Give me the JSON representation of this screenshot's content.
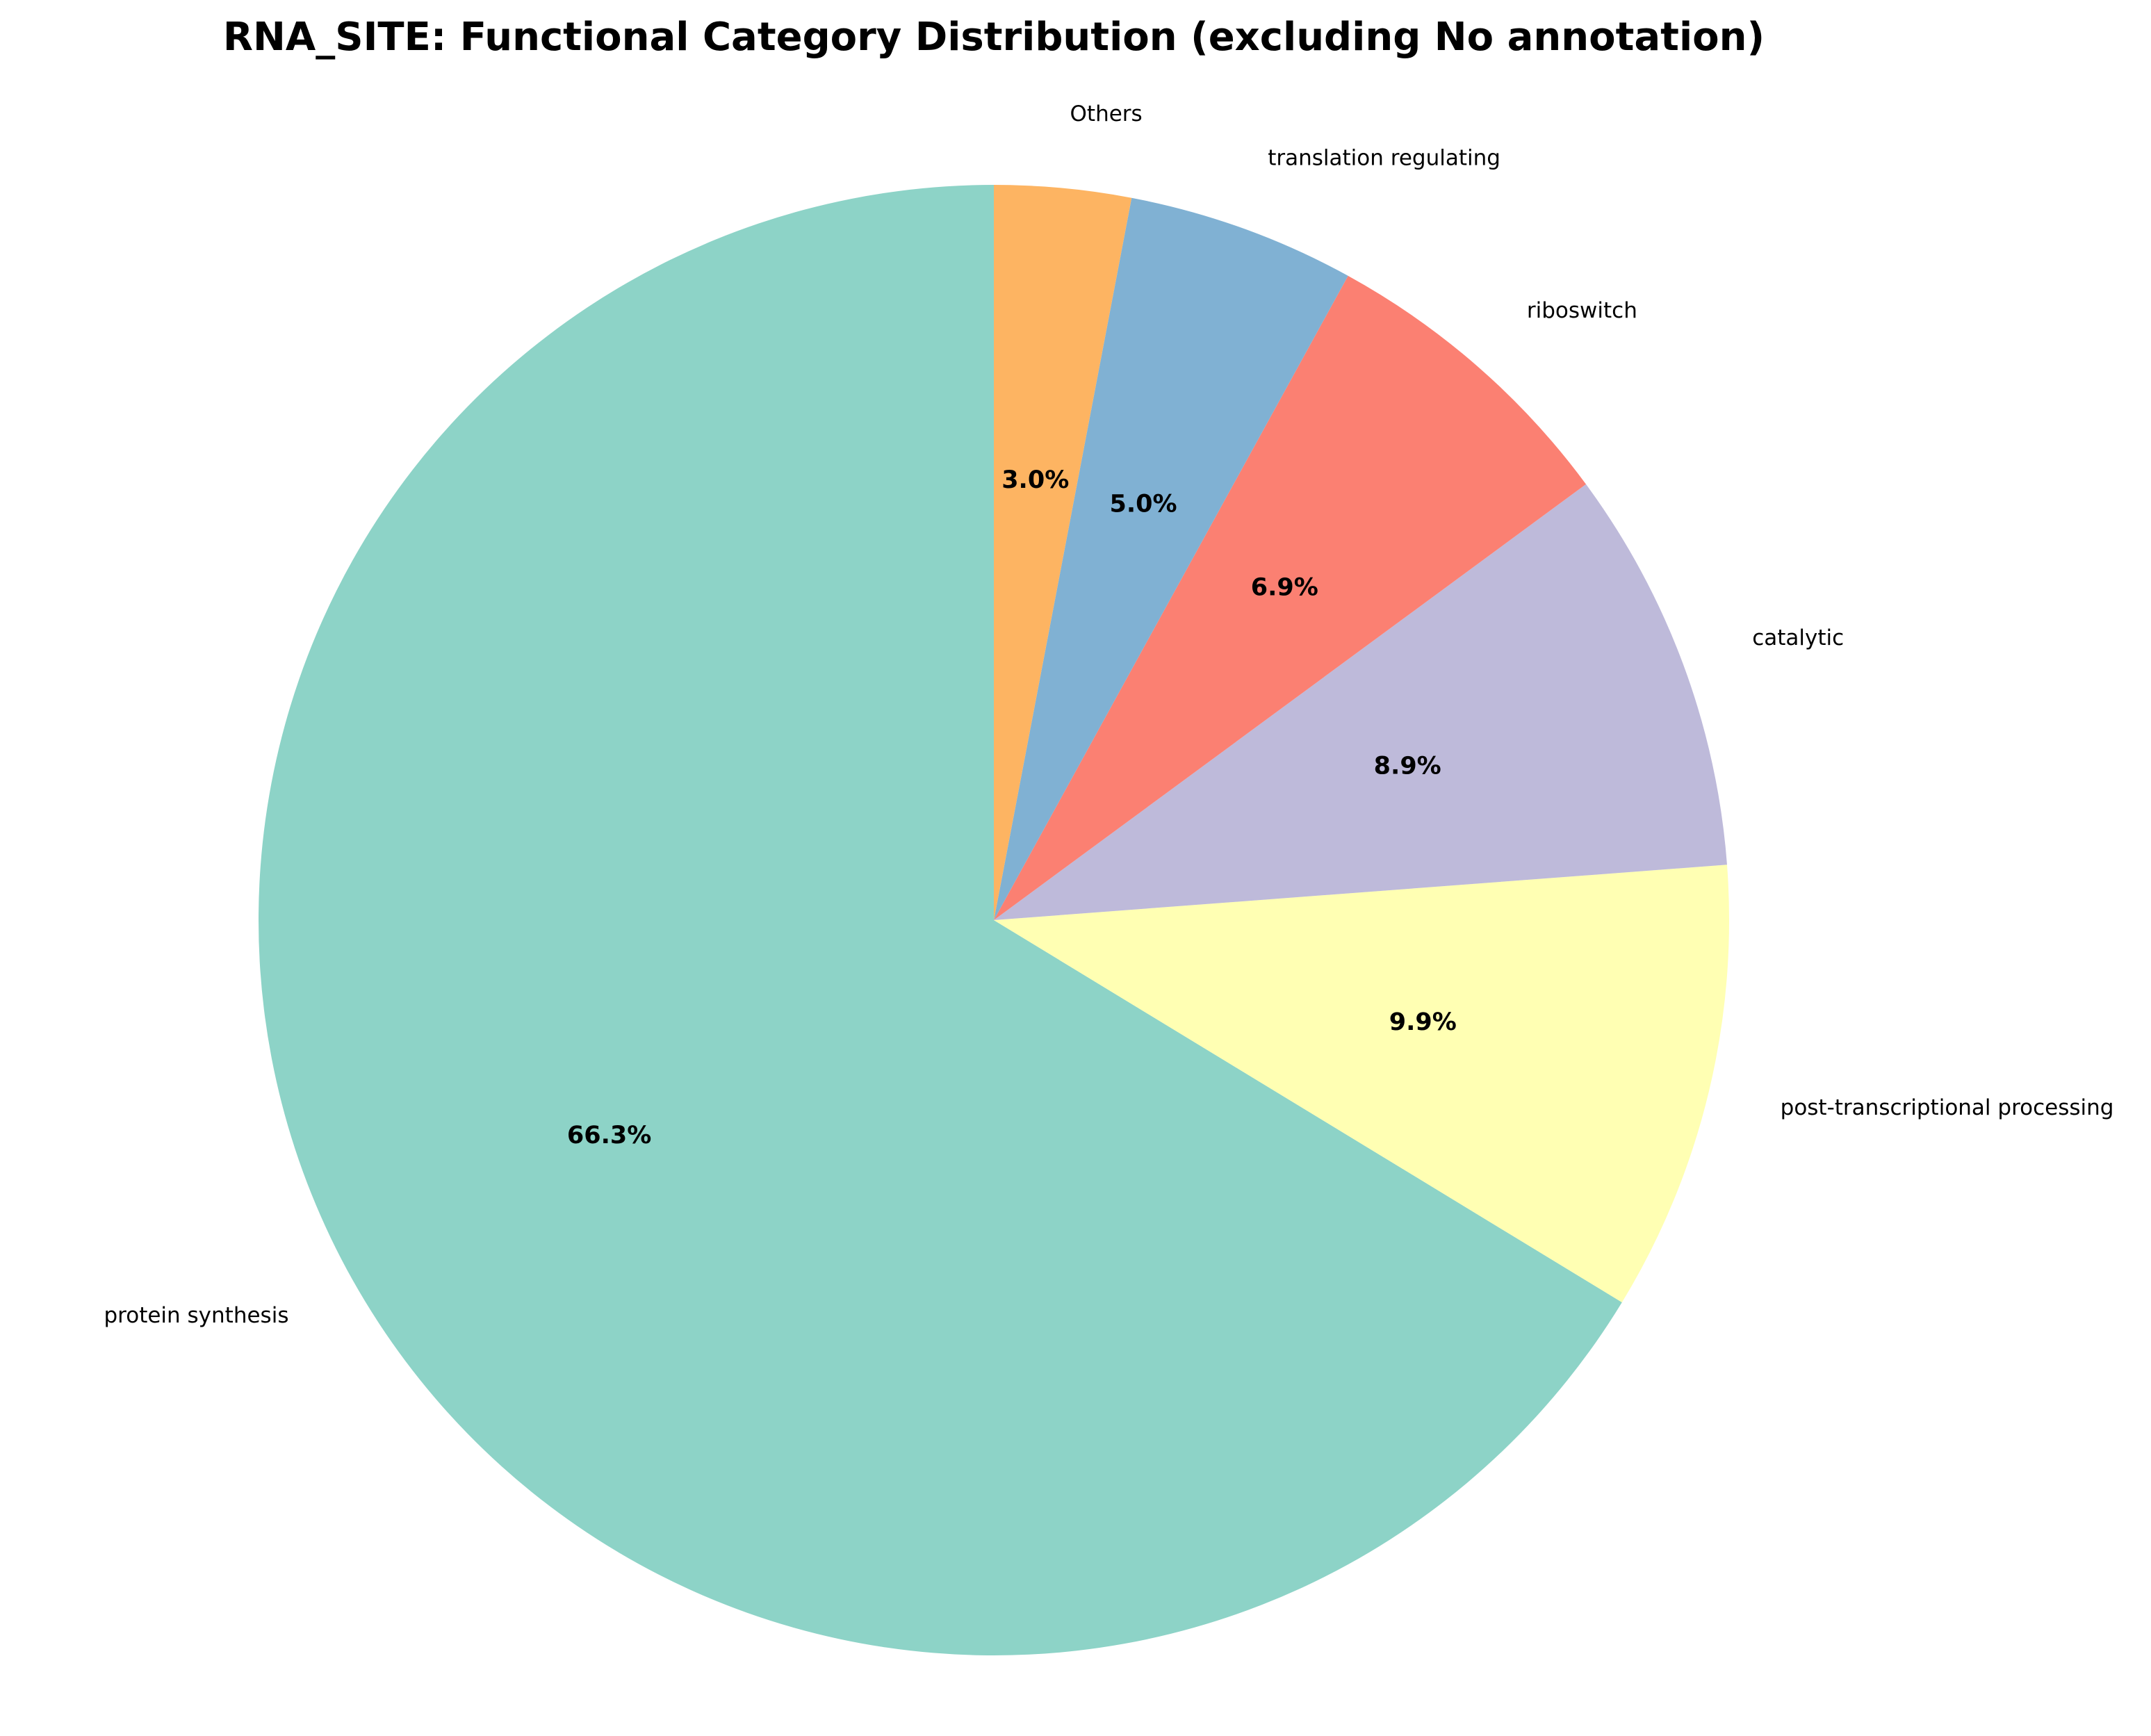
{
  "chart_data": {
    "type": "pie",
    "title": "RNA_SITE: Functional Category Distribution (excluding No annotation)",
    "start_angle_deg": 90,
    "direction": "counterclockwise",
    "slices": [
      {
        "label": "protein synthesis",
        "value": 66.3,
        "pct_label": "66.3%",
        "color": "#8dd3c7"
      },
      {
        "label": "post-transcriptional processing",
        "value": 9.9,
        "pct_label": "9.9%",
        "color": "#ffffb3"
      },
      {
        "label": "catalytic",
        "value": 8.9,
        "pct_label": "8.9%",
        "color": "#bebada"
      },
      {
        "label": "riboswitch",
        "value": 6.9,
        "pct_label": "6.9%",
        "color": "#fb8072"
      },
      {
        "label": "translation regulating",
        "value": 5.0,
        "pct_label": "5.0%",
        "color": "#80b1d3"
      },
      {
        "label": "Others",
        "value": 3.0,
        "pct_label": "3.0%",
        "color": "#fdb462"
      }
    ]
  }
}
